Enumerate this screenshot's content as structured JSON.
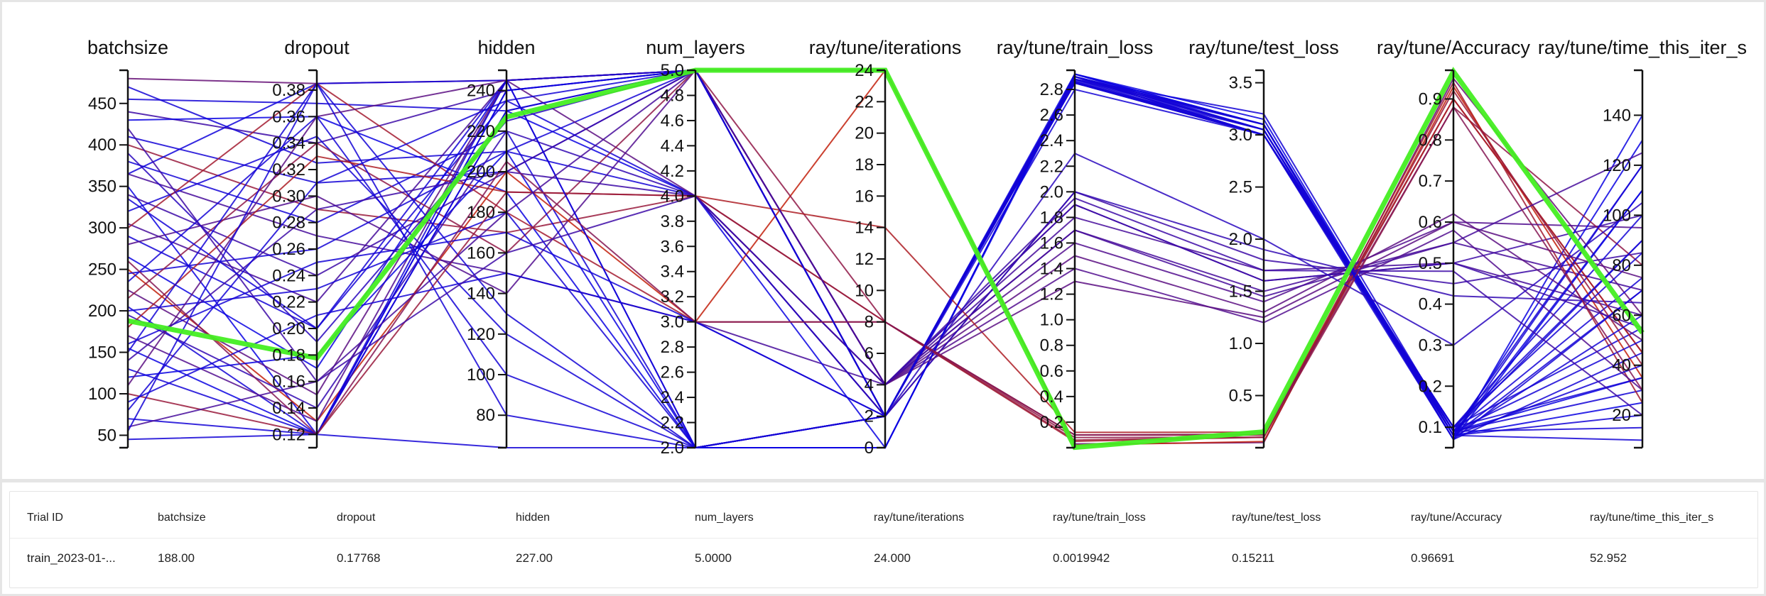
{
  "chart_data": {
    "type": "parallel-coordinates",
    "axes": [
      {
        "name": "batchsize",
        "range": [
          35,
          490
        ],
        "ticks": [
          50,
          100,
          150,
          200,
          250,
          300,
          350,
          400,
          450
        ],
        "tick_labels": [
          "50",
          "100",
          "150",
          "200",
          "250",
          "300",
          "350",
          "400",
          "450"
        ]
      },
      {
        "name": "dropout",
        "range": [
          0.11,
          0.395
        ],
        "ticks": [
          0.12,
          0.14,
          0.16,
          0.18,
          0.2,
          0.22,
          0.24,
          0.26,
          0.28,
          0.3,
          0.32,
          0.34,
          0.36,
          0.38
        ],
        "tick_labels": [
          "0.12",
          "0.14",
          "0.16",
          "0.18",
          "0.20",
          "0.22",
          "0.24",
          "0.26",
          "0.28",
          "0.30",
          "0.32",
          "0.34",
          "0.36",
          "0.38"
        ]
      },
      {
        "name": "hidden",
        "range": [
          64,
          250
        ],
        "ticks": [
          80,
          100,
          120,
          140,
          160,
          180,
          200,
          220,
          240
        ],
        "tick_labels": [
          "80",
          "100",
          "120",
          "140",
          "160",
          "180",
          "200",
          "220",
          "240"
        ]
      },
      {
        "name": "num_layers",
        "range": [
          2,
          5
        ],
        "ticks": [
          2.0,
          2.2,
          2.4,
          2.6,
          2.8,
          3.0,
          3.2,
          3.4,
          3.6,
          3.8,
          4.0,
          4.2,
          4.4,
          4.6,
          4.8,
          5.0
        ],
        "tick_labels": [
          "2.0",
          "2.2",
          "2.4",
          "2.6",
          "2.8",
          "3.0",
          "3.2",
          "3.4",
          "3.6",
          "3.8",
          "4.0",
          "4.2",
          "4.4",
          "4.6",
          "4.8",
          "5.0"
        ]
      },
      {
        "name": "ray/tune/iterations",
        "range": [
          0,
          24
        ],
        "ticks": [
          0,
          2,
          4,
          6,
          8,
          10,
          12,
          14,
          16,
          18,
          20,
          22,
          24
        ],
        "tick_labels": [
          "0",
          "2",
          "4",
          "6",
          "8",
          "10",
          "12",
          "14",
          "16",
          "18",
          "20",
          "22",
          "24"
        ]
      },
      {
        "name": "ray/tune/train_loss",
        "range": [
          0.0,
          2.95
        ],
        "ticks": [
          0.2,
          0.4,
          0.6,
          0.8,
          1.0,
          1.2,
          1.4,
          1.6,
          1.8,
          2.0,
          2.2,
          2.4,
          2.6,
          2.8
        ],
        "tick_labels": [
          "0.2",
          "0.4",
          "0.6",
          "0.8",
          "1.0",
          "1.2",
          "1.4",
          "1.6",
          "1.8",
          "2.0",
          "2.2",
          "2.4",
          "2.6",
          "2.8"
        ]
      },
      {
        "name": "ray/tune/test_loss",
        "range": [
          0.0,
          3.62
        ],
        "ticks": [
          0.5,
          1.0,
          1.5,
          2.0,
          2.5,
          3.0,
          3.5
        ],
        "tick_labels": [
          "0.5",
          "1.0",
          "1.5",
          "2.0",
          "2.5",
          "3.0",
          "3.5"
        ]
      },
      {
        "name": "ray/tune/Accuracy",
        "range": [
          0.05,
          0.97
        ],
        "ticks": [
          0.1,
          0.2,
          0.3,
          0.4,
          0.5,
          0.6,
          0.7,
          0.8,
          0.9
        ],
        "tick_labels": [
          "0.1",
          "0.2",
          "0.3",
          "0.4",
          "0.5",
          "0.6",
          "0.7",
          "0.8",
          "0.9"
        ]
      },
      {
        "name": "ray/tune/time_this_iter_s",
        "range": [
          7,
          158
        ],
        "ticks": [
          20,
          40,
          60,
          80,
          100,
          120,
          140
        ],
        "tick_labels": [
          "20",
          "40",
          "60",
          "80",
          "100",
          "120",
          "140"
        ]
      }
    ],
    "color_scale": {
      "low": "#0000ee",
      "high": "#cc2200"
    },
    "highlight_color": "#44ee22",
    "highlight_trial": {
      "batchsize": 188,
      "dropout": 0.17768,
      "hidden": 227,
      "num_layers": 5,
      "ray/tune/iterations": 24,
      "ray/tune/train_loss": 0.0019942,
      "ray/tune/test_loss": 0.15211,
      "ray/tune/Accuracy": 0.96691,
      "ray/tune/time_this_iter_s": 52.952
    },
    "lines": [
      {
        "v": [
          480,
          0.385,
          245,
          5,
          24,
          0.03,
          0.05,
          0.95,
          60
        ],
        "c": 0.5
      },
      {
        "v": [
          455,
          0.37,
          230,
          5,
          2,
          2.9,
          3.1,
          0.08,
          120
        ],
        "c": 0.1
      },
      {
        "v": [
          440,
          0.34,
          240,
          5,
          4,
          1.9,
          1.6,
          0.5,
          100
        ],
        "c": 0.3
      },
      {
        "v": [
          470,
          0.325,
          210,
          4,
          2,
          2.85,
          3.0,
          0.09,
          75
        ],
        "c": 0.1
      },
      {
        "v": [
          430,
          0.36,
          190,
          2,
          0,
          2.92,
          3.05,
          0.07,
          140
        ],
        "c": 0.05
      },
      {
        "v": [
          410,
          0.31,
          200,
          5,
          2,
          2.8,
          3.0,
          0.1,
          90
        ],
        "c": 0.1
      },
      {
        "v": [
          400,
          0.29,
          170,
          4,
          8,
          0.1,
          0.12,
          0.9,
          45
        ],
        "c": 0.75
      },
      {
        "v": [
          380,
          0.28,
          220,
          2,
          2,
          2.88,
          3.2,
          0.09,
          30
        ],
        "c": 0.1
      },
      {
        "v": [
          365,
          0.385,
          245,
          5,
          2,
          2.9,
          3.05,
          0.08,
          110
        ],
        "c": 0.08
      },
      {
        "v": [
          365,
          0.27,
          150,
          3,
          4,
          1.7,
          1.5,
          0.55,
          70
        ],
        "c": 0.35
      },
      {
        "v": [
          350,
          0.12,
          230,
          4,
          0,
          2.9,
          3.1,
          0.09,
          35
        ],
        "c": 0.05
      },
      {
        "v": [
          340,
          0.24,
          200,
          5,
          2,
          2.0,
          1.8,
          0.45,
          85
        ],
        "c": 0.3
      },
      {
        "v": [
          320,
          0.345,
          120,
          2,
          2,
          2.87,
          3.0,
          0.08,
          20
        ],
        "c": 0.1
      },
      {
        "v": [
          305,
          0.22,
          245,
          5,
          4,
          1.8,
          1.7,
          0.5,
          60
        ],
        "c": 0.35
      },
      {
        "v": [
          300,
          0.385,
          180,
          3,
          8,
          0.05,
          0.1,
          0.94,
          25
        ],
        "c": 0.8
      },
      {
        "v": [
          290,
          0.2,
          235,
          4,
          2,
          2.85,
          3.0,
          0.1,
          55
        ],
        "c": 0.1
      },
      {
        "v": [
          280,
          0.3,
          140,
          5,
          4,
          1.6,
          1.4,
          0.6,
          95
        ],
        "c": 0.4
      },
      {
        "v": [
          265,
          0.17,
          245,
          2,
          0,
          2.92,
          3.1,
          0.08,
          130
        ],
        "c": 0.05
      },
      {
        "v": [
          250,
          0.13,
          200,
          3,
          24,
          0.02,
          0.06,
          0.93,
          35
        ],
        "c": 0.95
      },
      {
        "v": [
          245,
          0.26,
          210,
          5,
          2,
          2.88,
          3.05,
          0.09,
          15
        ],
        "c": 0.1
      },
      {
        "v": [
          235,
          0.36,
          100,
          2,
          2,
          2.9,
          3.0,
          0.07,
          70
        ],
        "c": 0.1
      },
      {
        "v": [
          225,
          0.15,
          245,
          4,
          4,
          1.5,
          1.3,
          0.62,
          50
        ],
        "c": 0.45
      },
      {
        "v": [
          215,
          0.34,
          160,
          5,
          8,
          0.08,
          0.1,
          0.88,
          80
        ],
        "c": 0.7
      },
      {
        "v": [
          205,
          0.12,
          240,
          5,
          2,
          2.9,
          3.1,
          0.08,
          40
        ],
        "c": 0.1
      },
      {
        "v": [
          200,
          0.23,
          180,
          2,
          2,
          2.86,
          3.0,
          0.1,
          100
        ],
        "c": 0.1
      },
      {
        "v": [
          195,
          0.14,
          220,
          4,
          2,
          2.0,
          1.9,
          0.42,
          65
        ],
        "c": 0.25
      },
      {
        "v": [
          180,
          0.33,
          190,
          4,
          14,
          0.12,
          0.15,
          0.9,
          45
        ],
        "c": 0.85
      },
      {
        "v": [
          170,
          0.13,
          245,
          5,
          4,
          1.4,
          1.2,
          0.58,
          30
        ],
        "c": 0.4
      },
      {
        "v": [
          160,
          0.25,
          170,
          3,
          2,
          2.88,
          3.0,
          0.09,
          120
        ],
        "c": 0.1
      },
      {
        "v": [
          155,
          0.12,
          240,
          5,
          2,
          2.92,
          3.15,
          0.08,
          25
        ],
        "c": 0.05
      },
      {
        "v": [
          150,
          0.385,
          130,
          2,
          2,
          2.9,
          3.0,
          0.1,
          85
        ],
        "c": 0.1
      },
      {
        "v": [
          140,
          0.29,
          200,
          4,
          4,
          1.9,
          1.6,
          0.5,
          55
        ],
        "c": 0.3
      },
      {
        "v": [
          130,
          0.12,
          230,
          5,
          2,
          2.85,
          3.05,
          0.09,
          50
        ],
        "c": 0.1
      },
      {
        "v": [
          120,
          0.18,
          210,
          2,
          0,
          2.92,
          3.1,
          0.07,
          110
        ],
        "c": 0.05
      },
      {
        "v": [
          110,
          0.36,
          245,
          5,
          4,
          1.3,
          1.25,
          0.6,
          75
        ],
        "c": 0.45
      },
      {
        "v": [
          100,
          0.12,
          190,
          4,
          8,
          0.06,
          0.1,
          0.92,
          40
        ],
        "c": 0.75
      },
      {
        "v": [
          90,
          0.21,
          150,
          3,
          2,
          2.9,
          3.0,
          0.09,
          90
        ],
        "c": 0.1
      },
      {
        "v": [
          80,
          0.31,
          235,
          5,
          2,
          2.88,
          3.1,
          0.08,
          60
        ],
        "c": 0.1
      },
      {
        "v": [
          70,
          0.12,
          245,
          2,
          2,
          2.86,
          3.0,
          0.1,
          35
        ],
        "c": 0.1
      },
      {
        "v": [
          60,
          0.16,
          180,
          5,
          4,
          1.7,
          1.45,
          0.55,
          125
        ],
        "c": 0.35
      },
      {
        "v": [
          55,
          0.385,
          80,
          2,
          2,
          2.9,
          3.05,
          0.08,
          10
        ],
        "c": 0.1
      },
      {
        "v": [
          45,
          0.12,
          64,
          2,
          2,
          2.9,
          3.1,
          0.07,
          45
        ],
        "c": 0.1
      },
      {
        "v": [
          420,
          0.16,
          160,
          4,
          4,
          1.95,
          1.7,
          0.48,
          20
        ],
        "c": 0.3
      },
      {
        "v": [
          390,
          0.19,
          225,
          5,
          2,
          2.3,
          2.0,
          0.3,
          105
        ],
        "c": 0.2
      },
      {
        "v": [
          260,
          0.12,
          205,
          3,
          8,
          0.1,
          0.13,
          0.88,
          30
        ],
        "c": 0.65
      },
      {
        "v": [
          335,
          0.2,
          245,
          5,
          2,
          2.9,
          3.05,
          0.08,
          70
        ],
        "c": 0.1
      }
    ]
  },
  "table": {
    "headers": [
      "Trial ID",
      "batchsize",
      "dropout",
      "hidden",
      "num_layers",
      "ray/tune/iterations",
      "ray/tune/train_loss",
      "ray/tune/test_loss",
      "ray/tune/Accuracy",
      "ray/tune/time_this_iter_s"
    ],
    "row": [
      "train_2023-01-...",
      "188.00",
      "0.17768",
      "227.00",
      "5.0000",
      "24.000",
      "0.0019942",
      "0.15211",
      "0.96691",
      "52.952"
    ]
  }
}
